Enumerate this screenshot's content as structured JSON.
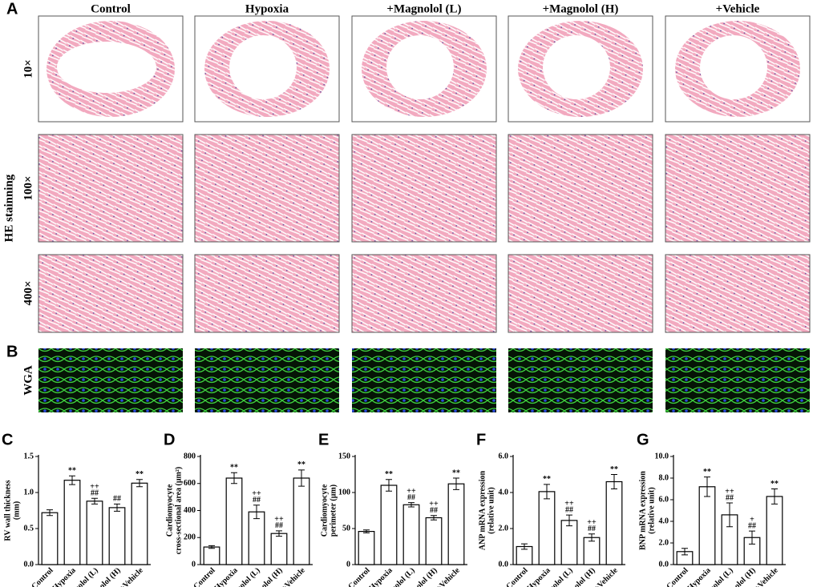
{
  "panel_labels": [
    "A",
    "B"
  ],
  "column_headers": [
    "Control",
    "Hypoxia",
    "+Magnolol (L)",
    "+Magnolol (H)",
    "+Vehicle"
  ],
  "row_labels": {
    "he": "HE stainning",
    "magnifications": [
      "10×",
      "100×",
      "400×"
    ],
    "wga": "WGA"
  },
  "chart_data": [
    {
      "type": "bar",
      "panel": "C",
      "ylabel": [
        "RV wall thickness",
        "(mm)"
      ],
      "categories": [
        "Control",
        "Hypoxia",
        "+Magnolol (L)",
        "+Magnolol (H)",
        "+Vehicle"
      ],
      "values": [
        0.72,
        1.17,
        0.88,
        0.79,
        1.13
      ],
      "errors": [
        0.04,
        0.06,
        0.04,
        0.05,
        0.05
      ],
      "significance": [
        null,
        [
          "**"
        ],
        [
          "++",
          "##"
        ],
        [
          "##"
        ],
        [
          "**"
        ]
      ],
      "ylim": [
        0,
        1.5
      ],
      "yticks": [
        {
          "value": 0,
          "label": "0.0"
        },
        {
          "value": 0.5,
          "label": "0.5"
        },
        {
          "value": 1,
          "label": "1.0"
        },
        {
          "value": 1.5,
          "label": "1.5"
        }
      ],
      "color": "#ffffff"
    },
    {
      "type": "bar",
      "panel": "D",
      "ylabel": [
        "Cardiomyocyte",
        "cross-sectional area (μm²)"
      ],
      "categories": [
        "Control",
        "Hypoxia",
        "+Magnolol (L)",
        "+Magnolol (H)",
        "+Vehicle"
      ],
      "values": [
        130,
        640,
        390,
        230,
        640
      ],
      "errors": [
        10,
        40,
        50,
        20,
        60
      ],
      "significance": [
        null,
        [
          "**"
        ],
        [
          "++",
          "##"
        ],
        [
          "++",
          "##"
        ],
        [
          "**"
        ]
      ],
      "ylim": [
        0,
        800
      ],
      "yticks": [
        0,
        200,
        400,
        600,
        800
      ],
      "color": "#ffffff"
    },
    {
      "type": "bar",
      "panel": "E",
      "ylabel": [
        "Cardiomyocyte",
        "perimeter (μm)"
      ],
      "categories": [
        "Control",
        "Hypoxia",
        "+Magnolol (L)",
        "+Magnolol (H)",
        "+Vehicle"
      ],
      "values": [
        46,
        110,
        83,
        65,
        112
      ],
      "errors": [
        2,
        8,
        3,
        3,
        8
      ],
      "significance": [
        null,
        [
          "**"
        ],
        [
          "++",
          "##"
        ],
        [
          "++",
          "##"
        ],
        [
          "**"
        ]
      ],
      "ylim": [
        0,
        150
      ],
      "yticks": [
        0,
        50,
        100,
        150
      ],
      "color": "#ffffff"
    },
    {
      "type": "bar",
      "panel": "F",
      "ylabel": [
        "ANP mRNA expression",
        "(relative unit)"
      ],
      "categories": [
        "Control",
        "Hypoxia",
        "+Magnolol (L)",
        "+Magnolol (H)",
        "+Vehicle"
      ],
      "values": [
        1.0,
        4.05,
        2.45,
        1.5,
        4.6
      ],
      "errors": [
        0.15,
        0.4,
        0.3,
        0.2,
        0.4
      ],
      "significance": [
        null,
        [
          "**"
        ],
        [
          "++",
          "##"
        ],
        [
          "++",
          "##"
        ],
        [
          "**"
        ]
      ],
      "ylim": [
        0,
        6
      ],
      "yticks": [
        {
          "value": 0,
          "label": "0.0"
        },
        {
          "value": 2,
          "label": "2.0"
        },
        {
          "value": 4,
          "label": "4.0"
        },
        {
          "value": 6,
          "label": "6.0"
        }
      ],
      "color": "#ffffff"
    },
    {
      "type": "bar",
      "panel": "G",
      "ylabel": [
        "BNP mRNA expression",
        "(relative unit)"
      ],
      "categories": [
        "Control",
        "Hypoxia",
        "+Magnolol (L)",
        "+Magnolol (H)",
        "+Vehicle"
      ],
      "values": [
        1.2,
        7.2,
        4.6,
        2.5,
        6.3
      ],
      "errors": [
        0.3,
        0.9,
        1.1,
        0.6,
        0.7
      ],
      "significance": [
        null,
        [
          "**"
        ],
        [
          "++",
          "##"
        ],
        [
          "+",
          "##"
        ],
        [
          "**"
        ]
      ],
      "ylim": [
        0,
        10
      ],
      "yticks": [
        {
          "value": 0,
          "label": "0.0"
        },
        {
          "value": 2,
          "label": "2.0"
        },
        {
          "value": 4,
          "label": "4.0"
        },
        {
          "value": 6,
          "label": "6.0"
        },
        {
          "value": 8,
          "label": "8.0"
        },
        {
          "value": 10,
          "label": "10.0"
        }
      ],
      "color": "#ffffff"
    }
  ]
}
